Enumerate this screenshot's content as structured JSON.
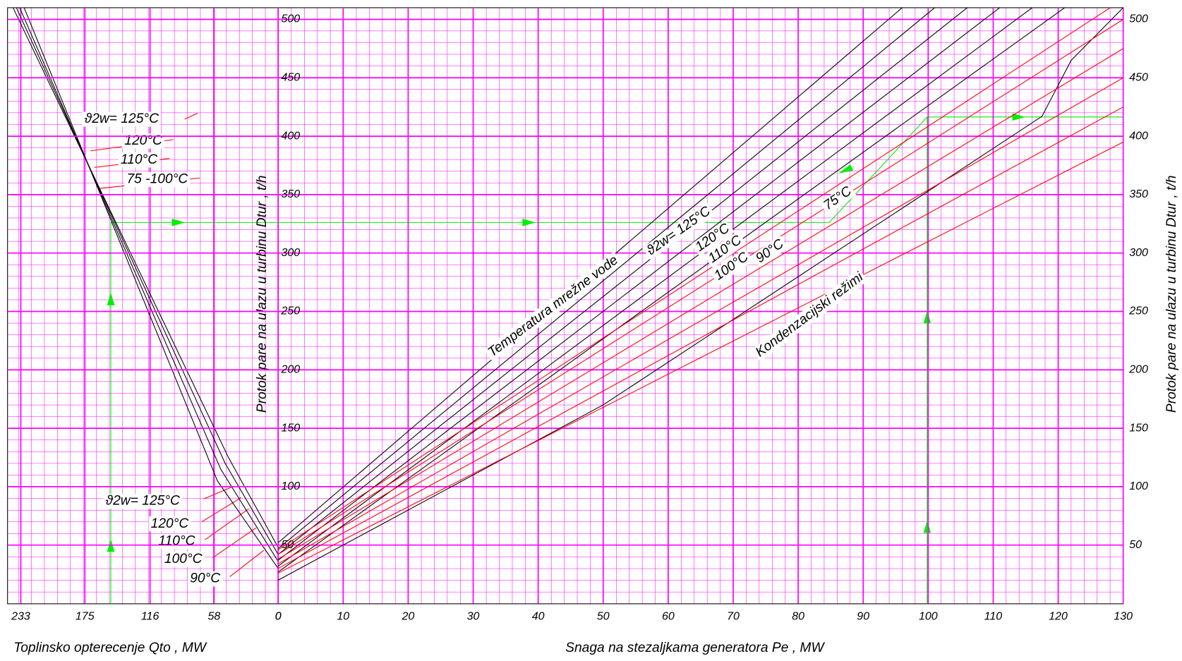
{
  "chart_data": [
    {
      "type": "line",
      "x_label": "Toplinsko opterecenje Qto , MW",
      "xlim": [
        245,
        0
      ],
      "ylim": [
        0,
        510
      ],
      "xticks": [
        233,
        175,
        116,
        58,
        0
      ],
      "grid": true,
      "series": [
        {
          "color": "#000000",
          "x": [
            0,
            45,
            240
          ],
          "values": [
            48,
            125,
            510
          ]
        },
        {
          "color": "#000000",
          "x": [
            0,
            48,
            237
          ],
          "values": [
            42,
            120,
            510
          ]
        },
        {
          "color": "#000000",
          "x": [
            0,
            52,
            234
          ],
          "values": [
            36,
            115,
            510
          ]
        },
        {
          "color": "#000000",
          "x": [
            0,
            55,
            230
          ],
          "values": [
            30,
            105,
            510
          ]
        }
      ],
      "annotations": [
        "ϑ2w= 125°C",
        "120°C",
        "110°C",
        "75 -100°C",
        "ϑ2w= 125°C",
        "120°C",
        "110°C",
        "100°C",
        "90°C"
      ]
    },
    {
      "type": "line",
      "x_label": "Snaga na stezaljkama generatora Pe , MW",
      "y_label": "Protok pare na ulazu u turbinu Dtur , t/h",
      "xlim": [
        0,
        130
      ],
      "ylim": [
        0,
        510
      ],
      "xticks": [
        0,
        10,
        20,
        30,
        40,
        50,
        60,
        70,
        80,
        90,
        100,
        110,
        120,
        130
      ],
      "yticks": [
        50,
        100,
        150,
        200,
        250,
        300,
        350,
        400,
        450,
        500
      ],
      "grid": true,
      "series": [
        {
          "color": "#000000",
          "x": [
            0,
            96
          ],
          "values": [
            52,
            510
          ]
        },
        {
          "color": "#000000",
          "x": [
            0,
            101
          ],
          "values": [
            47,
            510
          ]
        },
        {
          "color": "#000000",
          "x": [
            0,
            106
          ],
          "values": [
            42,
            510
          ]
        },
        {
          "color": "#000000",
          "x": [
            0,
            111
          ],
          "values": [
            37,
            510
          ]
        },
        {
          "color": "#000000",
          "x": [
            0,
            116
          ],
          "values": [
            32,
            510
          ]
        },
        {
          "color": "#000000",
          "x": [
            0,
            121
          ],
          "values": [
            27,
            510
          ]
        },
        {
          "color": "#000000",
          "x": [
            0,
            50,
            117.5,
            122,
            130
          ],
          "values": [
            20,
            170,
            417,
            465,
            510
          ]
        },
        {
          "color": "#ff0000",
          "x": [
            0,
            128
          ],
          "values": [
            46,
            510
          ]
        },
        {
          "color": "#ff0000",
          "x": [
            0,
            130
          ],
          "values": [
            42,
            500
          ]
        },
        {
          "color": "#ff0000",
          "x": [
            0,
            130
          ],
          "values": [
            38,
            475
          ]
        },
        {
          "color": "#ff0000",
          "x": [
            0,
            130
          ],
          "values": [
            34,
            450
          ]
        },
        {
          "color": "#ff0000",
          "x": [
            0,
            130
          ],
          "values": [
            30,
            425
          ]
        },
        {
          "color": "#ff0000",
          "x": [
            0,
            130
          ],
          "values": [
            26,
            395
          ]
        }
      ],
      "annotations": [
        "Temperatura mrežne vode",
        "ϑ2w= 125°C",
        "120°C",
        "110°C",
        "100°C",
        "90°C",
        "75°C",
        "Kondenzacijski režimi"
      ]
    }
  ]
}
